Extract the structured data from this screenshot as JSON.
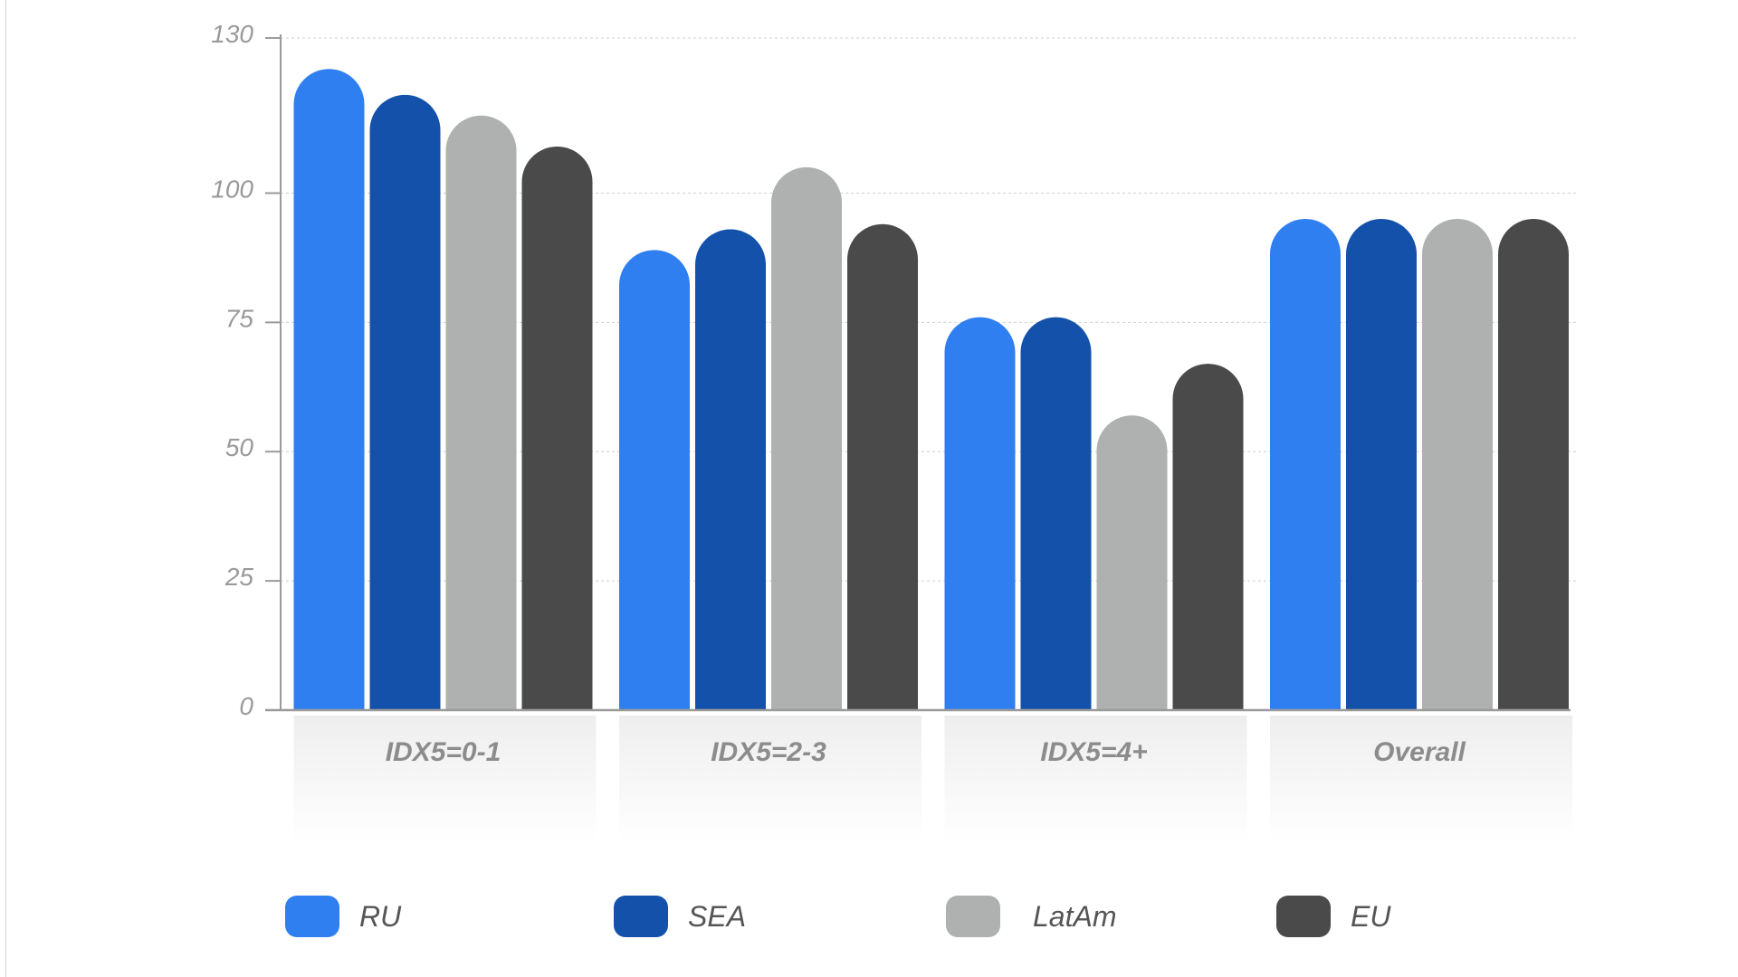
{
  "chart_data": {
    "type": "bar",
    "title": "",
    "xlabel": "",
    "ylabel": "",
    "categories": [
      "IDX5=0-1",
      "IDX5=2-3",
      "IDX5=4+",
      "Overall"
    ],
    "series": [
      {
        "name": "RU",
        "color": "#2f7ff0",
        "values": [
          124,
          89,
          76,
          95
        ]
      },
      {
        "name": "SEA",
        "color": "#1451aa",
        "values": [
          119,
          93,
          76,
          95
        ]
      },
      {
        "name": "LatAm",
        "color": "#afb0b0",
        "values": [
          115,
          105,
          57,
          95
        ]
      },
      {
        "name": "EU",
        "color": "#4a4a4a",
        "values": [
          109,
          94,
          67,
          95
        ]
      }
    ],
    "ylim": [
      0,
      130
    ],
    "yticks": [
      0,
      25,
      50,
      75,
      100,
      130
    ],
    "grid": true,
    "legend_position": "bottom"
  }
}
